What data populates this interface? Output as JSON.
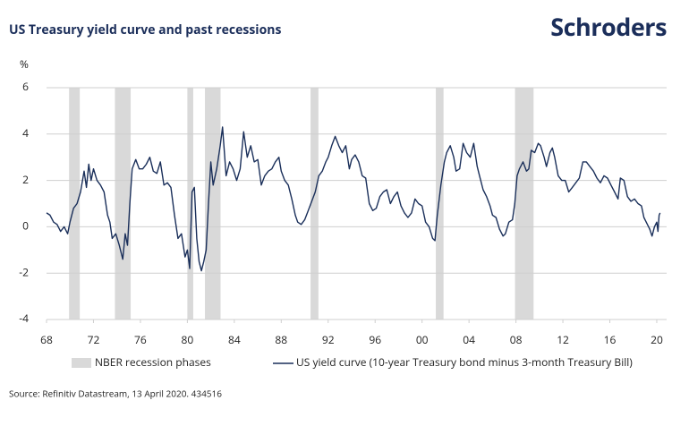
{
  "chart_data": {
    "type": "line",
    "title": "US Treasury yield curve and past recessions",
    "brand": "Schroders",
    "y_unit": "%",
    "source": "Source: Refinitiv Datastream, 13 April 2020. 434516",
    "xlim": [
      1968,
      2020.84
    ],
    "ylim": [
      -4,
      6
    ],
    "yticks": [
      -4,
      -2,
      0,
      2,
      4,
      6
    ],
    "xticks": [
      {
        "value": 1968,
        "label": "68"
      },
      {
        "value": 1972,
        "label": "72"
      },
      {
        "value": 1976,
        "label": "76"
      },
      {
        "value": 1980,
        "label": "80"
      },
      {
        "value": 1984,
        "label": "84"
      },
      {
        "value": 1988,
        "label": "88"
      },
      {
        "value": 1992,
        "label": "92"
      },
      {
        "value": 1996,
        "label": "96"
      },
      {
        "value": 2000,
        "label": "00"
      },
      {
        "value": 2004,
        "label": "04"
      },
      {
        "value": 2008,
        "label": "08"
      },
      {
        "value": 2012,
        "label": "12"
      },
      {
        "value": 2016,
        "label": "16"
      },
      {
        "value": 2020,
        "label": "20"
      }
    ],
    "grid": true,
    "recession_name": "NBER recession phases",
    "recession_color": "#d9d9d9",
    "recessions": [
      [
        1969.92,
        1970.83
      ],
      [
        1973.83,
        1975.17
      ],
      [
        1980.0,
        1980.5
      ],
      [
        1981.5,
        1982.83
      ],
      [
        1990.5,
        1991.17
      ],
      [
        2001.17,
        2001.83
      ],
      [
        2007.92,
        2009.5
      ]
    ],
    "series": [
      {
        "name": "US yield curve (10-year Treasury bond minus 3-month Treasury Bill)",
        "color": "#1a2f5a",
        "x": [
          1968.0,
          1968.3,
          1968.6,
          1968.9,
          1969.2,
          1969.5,
          1969.8,
          1970.0,
          1970.3,
          1970.6,
          1970.9,
          1971.2,
          1971.4,
          1971.6,
          1971.8,
          1972.0,
          1972.3,
          1972.6,
          1972.9,
          1973.2,
          1973.4,
          1973.6,
          1973.9,
          1974.2,
          1974.5,
          1974.7,
          1974.9,
          1975.1,
          1975.3,
          1975.6,
          1975.9,
          1976.2,
          1976.5,
          1976.8,
          1977.1,
          1977.4,
          1977.7,
          1978.0,
          1978.3,
          1978.6,
          1978.9,
          1979.2,
          1979.5,
          1979.8,
          1980.0,
          1980.2,
          1980.4,
          1980.6,
          1980.8,
          1981.0,
          1981.2,
          1981.4,
          1981.6,
          1981.8,
          1982.0,
          1982.2,
          1982.5,
          1982.8,
          1983.0,
          1983.3,
          1983.6,
          1983.9,
          1984.2,
          1984.5,
          1984.8,
          1985.1,
          1985.4,
          1985.7,
          1986.0,
          1986.3,
          1986.6,
          1986.9,
          1987.2,
          1987.5,
          1987.8,
          1988.0,
          1988.3,
          1988.6,
          1988.9,
          1989.2,
          1989.4,
          1989.7,
          1990.0,
          1990.3,
          1990.6,
          1990.9,
          1991.2,
          1991.5,
          1991.8,
          1992.0,
          1992.3,
          1992.6,
          1992.9,
          1993.2,
          1993.5,
          1993.8,
          1994.0,
          1994.3,
          1994.6,
          1994.9,
          1995.2,
          1995.5,
          1995.8,
          1996.1,
          1996.4,
          1996.7,
          1997.0,
          1997.3,
          1997.6,
          1997.9,
          1998.2,
          1998.5,
          1998.8,
          1999.1,
          1999.4,
          1999.7,
          2000.0,
          2000.3,
          2000.6,
          2000.9,
          2001.1,
          2001.3,
          2001.6,
          2001.9,
          2002.1,
          2002.4,
          2002.7,
          2002.9,
          2003.2,
          2003.5,
          2003.8,
          2004.1,
          2004.4,
          2004.7,
          2004.9,
          2005.2,
          2005.5,
          2005.8,
          2006.0,
          2006.3,
          2006.6,
          2006.9,
          2007.1,
          2007.4,
          2007.7,
          2007.9,
          2008.1,
          2008.3,
          2008.6,
          2008.9,
          2009.1,
          2009.3,
          2009.6,
          2009.9,
          2010.1,
          2010.4,
          2010.6,
          2010.9,
          2011.1,
          2011.3,
          2011.6,
          2011.9,
          2012.2,
          2012.5,
          2012.8,
          2013.1,
          2013.4,
          2013.7,
          2014.0,
          2014.3,
          2014.6,
          2014.9,
          2015.2,
          2015.5,
          2015.8,
          2016.1,
          2016.4,
          2016.7,
          2016.9,
          2017.2,
          2017.5,
          2017.8,
          2018.1,
          2018.4,
          2018.7,
          2018.9,
          2019.1,
          2019.4,
          2019.6,
          2019.8,
          2020.0,
          2020.1,
          2020.2,
          2020.28
        ],
        "values": [
          0.6,
          0.5,
          0.2,
          0.1,
          -0.2,
          0.0,
          -0.3,
          0.2,
          0.8,
          1.0,
          1.5,
          2.4,
          1.7,
          2.7,
          2.0,
          2.5,
          2.0,
          1.8,
          1.5,
          0.5,
          0.2,
          -0.5,
          -0.3,
          -0.8,
          -1.4,
          -0.3,
          -0.8,
          1.0,
          2.5,
          2.9,
          2.5,
          2.5,
          2.7,
          3.0,
          2.4,
          2.3,
          2.8,
          1.8,
          1.9,
          1.7,
          0.5,
          -0.5,
          -0.3,
          -1.3,
          -1.0,
          -1.8,
          1.5,
          1.7,
          -0.5,
          -1.5,
          -1.9,
          -1.5,
          -1.0,
          1.0,
          2.8,
          1.8,
          2.5,
          3.5,
          4.3,
          2.2,
          2.8,
          2.5,
          2.0,
          2.5,
          4.1,
          3.0,
          3.5,
          2.8,
          2.9,
          1.8,
          2.2,
          2.4,
          2.5,
          2.8,
          3.0,
          2.4,
          2.0,
          1.8,
          1.2,
          0.5,
          0.2,
          0.1,
          0.3,
          0.7,
          1.1,
          1.5,
          2.2,
          2.4,
          2.8,
          3.0,
          3.5,
          3.9,
          3.5,
          3.2,
          3.5,
          2.5,
          2.9,
          3.1,
          2.8,
          2.2,
          2.1,
          1.0,
          0.7,
          0.8,
          1.3,
          1.5,
          1.6,
          1.0,
          1.3,
          1.5,
          0.9,
          0.6,
          0.4,
          0.6,
          1.2,
          1.0,
          0.9,
          0.2,
          0.0,
          -0.5,
          -0.6,
          0.5,
          1.8,
          2.8,
          3.2,
          3.5,
          3.0,
          2.4,
          2.5,
          3.6,
          3.2,
          3.0,
          3.6,
          2.6,
          2.2,
          1.6,
          1.3,
          0.9,
          0.5,
          0.4,
          -0.1,
          -0.4,
          -0.3,
          0.2,
          0.3,
          1.0,
          2.2,
          2.5,
          2.8,
          2.4,
          2.5,
          3.3,
          3.2,
          3.6,
          3.5,
          3.0,
          2.6,
          3.2,
          3.4,
          3.0,
          2.2,
          2.0,
          2.0,
          1.5,
          1.7,
          1.9,
          2.1,
          2.8,
          2.8,
          2.6,
          2.4,
          2.1,
          1.9,
          2.2,
          2.1,
          1.8,
          1.5,
          1.2,
          2.1,
          2.0,
          1.3,
          1.1,
          1.2,
          1.0,
          0.9,
          0.4,
          0.2,
          -0.1,
          -0.4,
          0.0,
          0.2,
          -0.2,
          0.5,
          0.6
        ]
      }
    ]
  }
}
